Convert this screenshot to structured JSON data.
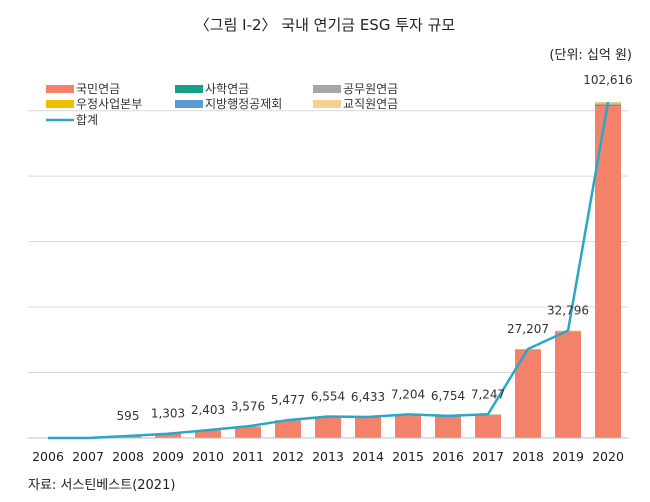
{
  "header": {
    "title": "〈그림 Ⅰ-2〉 국내 연기금 ESG 투자 규모",
    "unit": "(단위: 십억 원)"
  },
  "footer": {
    "source": "자료: 서스틴베스트(2021)"
  },
  "colors": {
    "nps": "#f4826a",
    "teachers": "#16a08a",
    "government": "#a6a6a6",
    "postal": "#f2bf00",
    "local": "#5b9bd5",
    "school": "#f8cf8d",
    "total": "#2aa6c6",
    "grid": "#d9d9d9"
  },
  "chart_data": {
    "type": "bar",
    "stacked": true,
    "categories": [
      "2006",
      "2007",
      "2008",
      "2009",
      "2010",
      "2011",
      "2012",
      "2013",
      "2014",
      "2015",
      "2016",
      "2017",
      "2018",
      "2019",
      "2020"
    ],
    "ylim": [
      0,
      110000
    ],
    "grid": true,
    "legend_position": "top-left",
    "series": [
      {
        "name": "국민연금",
        "key": "nps",
        "values": [
          0,
          0,
          595,
          1250,
          2300,
          3450,
          5300,
          6350,
          6250,
          7000,
          6550,
          7050,
          26900,
          32500,
          101500
        ]
      },
      {
        "name": "사학연금",
        "key": "teachers",
        "values": [
          0,
          0,
          0,
          10,
          30,
          40,
          60,
          70,
          60,
          70,
          70,
          60,
          100,
          90,
          300
        ]
      },
      {
        "name": "공무원연금",
        "key": "government",
        "values": [
          0,
          0,
          0,
          10,
          20,
          30,
          40,
          50,
          50,
          50,
          50,
          50,
          80,
          80,
          300
        ]
      },
      {
        "name": "우정사업본부",
        "key": "postal",
        "values": [
          0,
          0,
          0,
          20,
          30,
          40,
          50,
          60,
          50,
          60,
          60,
          60,
          80,
          80,
          400
        ]
      },
      {
        "name": "지방행정공제회",
        "key": "local",
        "values": [
          0,
          0,
          0,
          3,
          3,
          6,
          7,
          4,
          3,
          4,
          4,
          7,
          7,
          6,
          16
        ]
      },
      {
        "name": "교직원연금",
        "key": "school",
        "values": [
          0,
          0,
          0,
          10,
          20,
          10,
          20,
          20,
          20,
          20,
          20,
          20,
          40,
          40,
          100
        ]
      }
    ],
    "total": {
      "name": "합계",
      "values": [
        0,
        0,
        595,
        1303,
        2403,
        3576,
        5477,
        6554,
        6433,
        7204,
        6754,
        7247,
        27207,
        32796,
        102616
      ],
      "labels": [
        "",
        "",
        "595",
        "1,303",
        "2,403",
        "3,576",
        "5,477",
        "6,554",
        "6,433",
        "7,204",
        "6,754",
        "7,247",
        "27,207",
        "32,796",
        "102,616"
      ]
    }
  }
}
